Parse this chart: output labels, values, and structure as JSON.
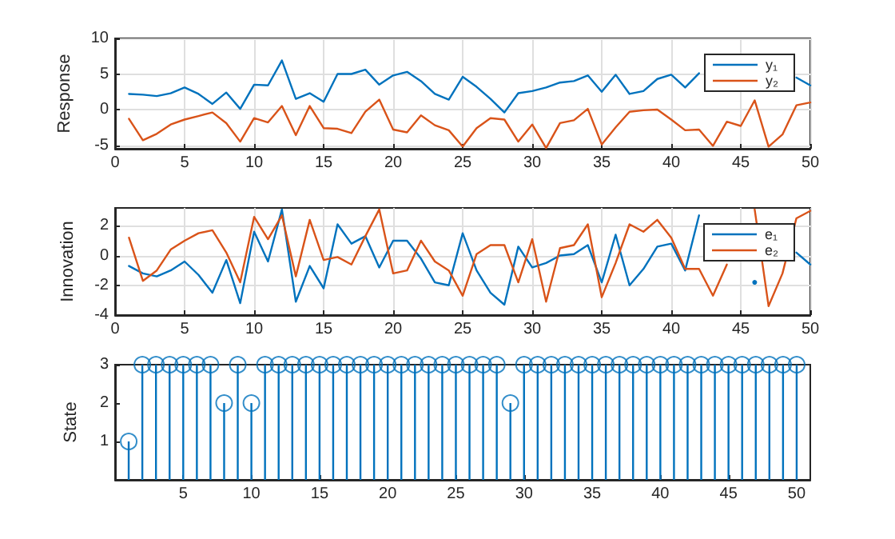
{
  "chart_data": [
    {
      "type": "line",
      "ylabel": "Response",
      "x": [
        1,
        2,
        3,
        4,
        5,
        6,
        7,
        8,
        9,
        10,
        11,
        12,
        13,
        14,
        15,
        16,
        17,
        18,
        19,
        20,
        21,
        22,
        23,
        24,
        25,
        26,
        27,
        28,
        29,
        30,
        31,
        32,
        33,
        34,
        35,
        36,
        37,
        38,
        39,
        40,
        41,
        42,
        43,
        44,
        45,
        46,
        47,
        48,
        49,
        50
      ],
      "xlim": [
        0,
        50
      ],
      "xticks": [
        0,
        5,
        10,
        15,
        20,
        25,
        30,
        35,
        40,
        45,
        50
      ],
      "ylim": [
        -5.5,
        10
      ],
      "yticks": [
        -5,
        0,
        5,
        10
      ],
      "grid": true,
      "legend": "top right",
      "marker": "none",
      "line_style": "solid",
      "series": [
        {
          "name": "y₁",
          "color": "#0072bd",
          "values": [
            2.2,
            2.1,
            1.9,
            2.3,
            3.1,
            2.2,
            0.8,
            2.4,
            0.1,
            3.5,
            3.4,
            6.9,
            1.5,
            2.3,
            1.1,
            5.0,
            5.0,
            5.6,
            3.5,
            4.8,
            5.3,
            4.0,
            2.2,
            1.4,
            4.6,
            3.2,
            1.5,
            -0.4,
            2.3,
            2.6,
            3.1,
            3.8,
            4.0,
            4.8,
            2.5,
            4.9,
            2.2,
            2.6,
            4.3,
            4.9,
            3.1,
            5.1,
            null,
            null,
            null,
            null,
            null,
            null,
            4.5,
            3.4
          ]
        },
        {
          "name": "y₂",
          "color": "#d95319",
          "values": [
            -1.3,
            -4.3,
            -3.4,
            -2.1,
            -1.4,
            -0.9,
            -0.4,
            -1.9,
            -4.5,
            -1.2,
            -1.8,
            0.5,
            -3.6,
            0.5,
            -2.6,
            -2.7,
            -3.3,
            -0.3,
            1.4,
            -2.8,
            -3.2,
            -0.8,
            -2.2,
            -2.9,
            -5.2,
            -2.6,
            -1.2,
            -1.4,
            -4.5,
            -2.1,
            -5.4,
            -1.9,
            -1.5,
            0.1,
            -4.9,
            -2.5,
            -0.3,
            -0.1,
            0,
            -1.4,
            -2.9,
            -2.8,
            -5.1,
            -1.7,
            -2.3,
            1.3,
            -5.2,
            -3.5,
            0.6,
            1.0
          ]
        }
      ]
    },
    {
      "type": "line",
      "ylabel": "Innovation",
      "x": [
        1,
        2,
        3,
        4,
        5,
        6,
        7,
        8,
        9,
        10,
        11,
        12,
        13,
        14,
        15,
        16,
        17,
        18,
        19,
        20,
        21,
        22,
        23,
        24,
        25,
        26,
        27,
        28,
        29,
        30,
        31,
        32,
        33,
        34,
        35,
        36,
        37,
        38,
        39,
        40,
        41,
        42,
        43,
        44,
        45,
        46,
        47,
        48,
        49,
        50
      ],
      "xlim": [
        0,
        50
      ],
      "xticks": [
        0,
        5,
        10,
        15,
        20,
        25,
        30,
        35,
        40,
        45,
        50
      ],
      "ylim": [
        -4,
        3.2
      ],
      "yticks": [
        -4,
        -2,
        0,
        2
      ],
      "grid": true,
      "legend": "top right",
      "marker": "none",
      "line_style": "solid",
      "series": [
        {
          "name": "e₁",
          "color": "#0072bd",
          "values": [
            -0.7,
            -1.2,
            -1.4,
            -1.0,
            -0.4,
            -1.3,
            -2.5,
            -0.3,
            -3.2,
            1.6,
            -0.4,
            3.1,
            -3.1,
            -0.7,
            -2.2,
            2.1,
            0.8,
            1.3,
            -0.8,
            1.0,
            1.0,
            -0.2,
            -1.8,
            -2.0,
            1.5,
            -1.0,
            -2.5,
            -3.3,
            0.6,
            -0.8,
            -0.5,
            0.0,
            0.1,
            0.7,
            -1.8,
            1.4,
            -2.0,
            -0.9,
            0.6,
            0.8,
            -1.0,
            2.7,
            null,
            null,
            null,
            -1.8,
            null,
            null,
            0.2,
            -0.6
          ]
        },
        {
          "name": "e₂",
          "color": "#d95319",
          "values": [
            1.2,
            -1.7,
            -1.0,
            0.4,
            1.0,
            1.5,
            1.7,
            0.2,
            -1.8,
            2.6,
            1.1,
            2.7,
            -1.4,
            2.4,
            -0.3,
            -0.1,
            -0.6,
            1.3,
            3.1,
            -1.2,
            -1.0,
            1.0,
            -0.4,
            -1.0,
            -2.7,
            0.1,
            0.7,
            0.7,
            -1.8,
            1.1,
            -3.1,
            0.5,
            0.7,
            2.1,
            -2.8,
            -0.5,
            2.1,
            1.6,
            2.4,
            1.2,
            -0.9,
            -0.9,
            -2.7,
            -0.6,
            null,
            3.1,
            -3.4,
            -1.2,
            2.5,
            3.0
          ]
        }
      ]
    },
    {
      "type": "lollipop",
      "ylabel": "State",
      "x": [
        1,
        2,
        3,
        4,
        5,
        6,
        7,
        8,
        9,
        10,
        11,
        12,
        13,
        14,
        15,
        16,
        17,
        18,
        19,
        20,
        21,
        22,
        23,
        24,
        25,
        26,
        27,
        28,
        29,
        30,
        31,
        32,
        33,
        34,
        35,
        36,
        37,
        38,
        39,
        40,
        41,
        42,
        43,
        44,
        45,
        46,
        47,
        48,
        49,
        50
      ],
      "xlim": [
        0,
        51
      ],
      "xticks": [
        5,
        10,
        15,
        20,
        25,
        30,
        35,
        40,
        45,
        50
      ],
      "ylim": [
        0,
        3
      ],
      "yticks": [
        1,
        2,
        3
      ],
      "marker": "circle",
      "series": [
        {
          "color": "#0072bd",
          "values": [
            1,
            3,
            3,
            3,
            3,
            3,
            3,
            2,
            3,
            2,
            3,
            3,
            3,
            3,
            3,
            3,
            3,
            3,
            3,
            3,
            3,
            3,
            3,
            3,
            3,
            3,
            3,
            3,
            2,
            3,
            3,
            3,
            3,
            3,
            3,
            3,
            3,
            3,
            3,
            3,
            3,
            3,
            3,
            3,
            3,
            3,
            3,
            3,
            3,
            3
          ]
        }
      ]
    }
  ]
}
